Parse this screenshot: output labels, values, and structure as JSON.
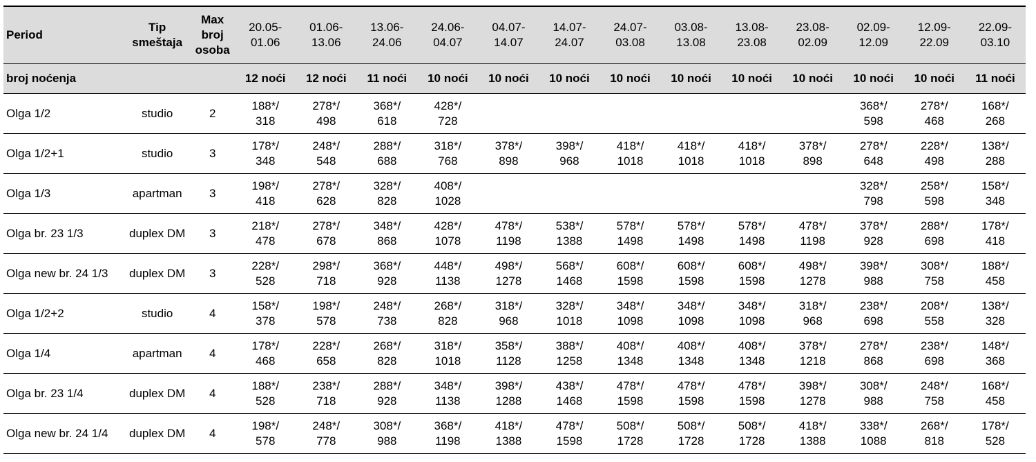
{
  "table": {
    "header": {
      "period": "Period",
      "type": [
        "Tip",
        "smeštaja"
      ],
      "max": [
        "Max",
        "broj",
        "osoba"
      ],
      "periods": [
        [
          "20.05-",
          "01.06"
        ],
        [
          "01.06-",
          "13.06"
        ],
        [
          "13.06-",
          "24.06"
        ],
        [
          "24.06-",
          "04.07"
        ],
        [
          "04.07-",
          "14.07"
        ],
        [
          "14.07-",
          "24.07"
        ],
        [
          "24.07-",
          "03.08"
        ],
        [
          "03.08-",
          "13.08"
        ],
        [
          "13.08-",
          "23.08"
        ],
        [
          "23.08-",
          "02.09"
        ],
        [
          "02.09-",
          "12.09"
        ],
        [
          "12.09-",
          "22.09"
        ],
        [
          "22.09-",
          "03.10"
        ]
      ]
    },
    "nights": {
      "label": "broj noćenja",
      "values": [
        "12 noći",
        "12 noći",
        "11 noći",
        "10 noći",
        "10 noći",
        "10 noći",
        "10 noći",
        "10 noći",
        "10 noći",
        "10 noći",
        "10 noći",
        "10 noći",
        "11 noći"
      ]
    },
    "rows": [
      {
        "name": "Olga 1/2",
        "type": "studio",
        "max": 2,
        "prices": [
          [
            "188*/",
            "318"
          ],
          [
            "278*/",
            "498"
          ],
          [
            "368*/",
            "618"
          ],
          [
            "428*/",
            "728"
          ],
          null,
          null,
          null,
          null,
          null,
          null,
          [
            "368*/",
            "598"
          ],
          [
            "278*/",
            "468"
          ],
          [
            "168*/",
            "268"
          ]
        ]
      },
      {
        "name": "Olga 1/2+1",
        "type": "studio",
        "max": 3,
        "prices": [
          [
            "178*/",
            "348"
          ],
          [
            "248*/",
            "548"
          ],
          [
            "288*/",
            "688"
          ],
          [
            "318*/",
            "768"
          ],
          [
            "378*/",
            "898"
          ],
          [
            "398*/",
            "968"
          ],
          [
            "418*/",
            "1018"
          ],
          [
            "418*/",
            "1018"
          ],
          [
            "418*/",
            "1018"
          ],
          [
            "378*/",
            "898"
          ],
          [
            "278*/",
            "648"
          ],
          [
            "228*/",
            "498"
          ],
          [
            "138*/",
            "288"
          ]
        ]
      },
      {
        "name": "Olga 1/3",
        "type": "apartman",
        "max": 3,
        "prices": [
          [
            "198*/",
            "418"
          ],
          [
            "278*/",
            "628"
          ],
          [
            "328*/",
            "828"
          ],
          [
            "408*/",
            "1028"
          ],
          null,
          null,
          null,
          null,
          null,
          null,
          [
            "328*/",
            "798"
          ],
          [
            "258*/",
            "598"
          ],
          [
            "158*/",
            "348"
          ]
        ]
      },
      {
        "name": "Olga br. 23 1/3",
        "type": "duplex DM",
        "max": 3,
        "prices": [
          [
            "218*/",
            "478"
          ],
          [
            "278*/",
            "678"
          ],
          [
            "348*/",
            "868"
          ],
          [
            "428*/",
            "1078"
          ],
          [
            "478*/",
            "1198"
          ],
          [
            "538*/",
            "1388"
          ],
          [
            "578*/",
            "1498"
          ],
          [
            "578*/",
            "1498"
          ],
          [
            "578*/",
            "1498"
          ],
          [
            "478*/",
            "1198"
          ],
          [
            "378*/",
            "928"
          ],
          [
            "288*/",
            "698"
          ],
          [
            "178*/",
            "418"
          ]
        ]
      },
      {
        "name": "Olga new br. 24 1/3",
        "type": "duplex DM",
        "max": 3,
        "prices": [
          [
            "228*/",
            "528"
          ],
          [
            "298*/",
            "718"
          ],
          [
            "368*/",
            "928"
          ],
          [
            "448*/",
            "1138"
          ],
          [
            "498*/",
            "1278"
          ],
          [
            "568*/",
            "1468"
          ],
          [
            "608*/",
            "1598"
          ],
          [
            "608*/",
            "1598"
          ],
          [
            "608*/",
            "1598"
          ],
          [
            "498*/",
            "1278"
          ],
          [
            "398*/",
            "988"
          ],
          [
            "308*/",
            "758"
          ],
          [
            "188*/",
            "458"
          ]
        ]
      },
      {
        "name": "Olga 1/2+2",
        "type": "studio",
        "max": 4,
        "prices": [
          [
            "158*/",
            "378"
          ],
          [
            "198*/",
            "578"
          ],
          [
            "248*/",
            "738"
          ],
          [
            "268*/",
            "828"
          ],
          [
            "318*/",
            "968"
          ],
          [
            "328*/",
            "1018"
          ],
          [
            "348*/",
            "1098"
          ],
          [
            "348*/",
            "1098"
          ],
          [
            "348*/",
            "1098"
          ],
          [
            "318*/",
            "968"
          ],
          [
            "238*/",
            "698"
          ],
          [
            "208*/",
            "558"
          ],
          [
            "138*/",
            "328"
          ]
        ]
      },
      {
        "name": "Olga 1/4",
        "type": "apartman",
        "max": 4,
        "prices": [
          [
            "178*/",
            "468"
          ],
          [
            "228*/",
            "658"
          ],
          [
            "268*/",
            "828"
          ],
          [
            "318*/",
            "1018"
          ],
          [
            "358*/",
            "1128"
          ],
          [
            "388*/",
            "1258"
          ],
          [
            "408*/",
            "1348"
          ],
          [
            "408*/",
            "1348"
          ],
          [
            "408*/",
            "1348"
          ],
          [
            "378*/",
            "1218"
          ],
          [
            "278*/",
            "868"
          ],
          [
            "238*/",
            "698"
          ],
          [
            "148*/",
            "368"
          ]
        ]
      },
      {
        "name": "Olga br. 23 1/4",
        "type": "duplex DM",
        "max": 4,
        "prices": [
          [
            "188*/",
            "528"
          ],
          [
            "238*/",
            "718"
          ],
          [
            "288*/",
            "928"
          ],
          [
            "348*/",
            "1138"
          ],
          [
            "398*/",
            "1288"
          ],
          [
            "438*/",
            "1468"
          ],
          [
            "478*/",
            "1598"
          ],
          [
            "478*/",
            "1598"
          ],
          [
            "478*/",
            "1598"
          ],
          [
            "398*/",
            "1278"
          ],
          [
            "308*/",
            "988"
          ],
          [
            "248*/",
            "758"
          ],
          [
            "168*/",
            "458"
          ]
        ]
      },
      {
        "name": "Olga new br. 24 1/4",
        "type": "duplex DM",
        "max": 4,
        "prices": [
          [
            "198*/",
            "578"
          ],
          [
            "248*/",
            "778"
          ],
          [
            "308*/",
            "988"
          ],
          [
            "368*/",
            "1198"
          ],
          [
            "418*/",
            "1388"
          ],
          [
            "478*/",
            "1598"
          ],
          [
            "508*/",
            "1728"
          ],
          [
            "508*/",
            "1728"
          ],
          [
            "508*/",
            "1728"
          ],
          [
            "418*/",
            "1388"
          ],
          [
            "338*/",
            "1088"
          ],
          [
            "268*/",
            "818"
          ],
          [
            "178*/",
            "528"
          ]
        ]
      }
    ]
  }
}
